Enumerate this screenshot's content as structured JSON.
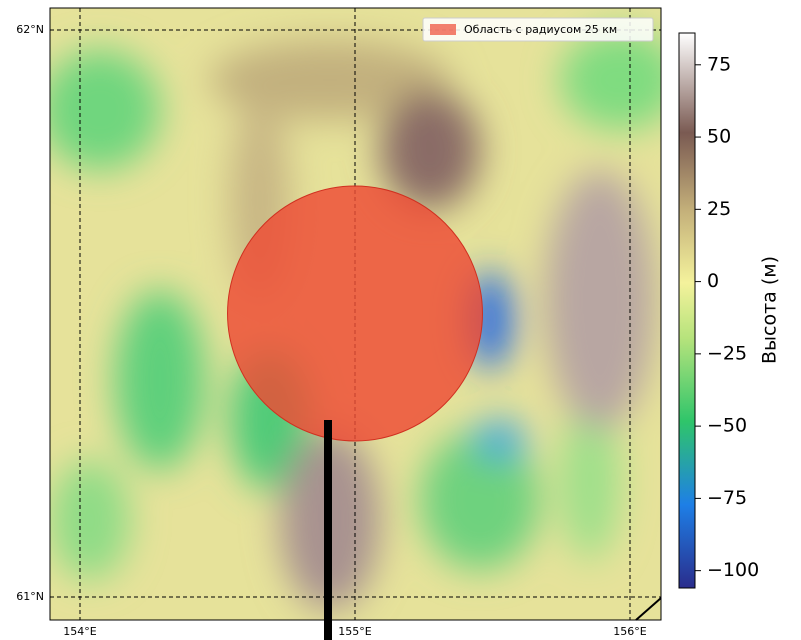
{
  "map": {
    "lon_ticks": [
      {
        "value": 154,
        "label": "154°E"
      },
      {
        "value": 155,
        "label": "155°E"
      },
      {
        "value": 156,
        "label": "156°E"
      }
    ],
    "lat_ticks": [
      {
        "value": 62,
        "label": "62°N"
      },
      {
        "value": 61,
        "label": "61°N"
      }
    ],
    "circle": {
      "lat": 61.5,
      "lon": 155,
      "radius_km": 25,
      "color": "#ee4a34"
    },
    "legend_label": "Область с радиусом 25 км",
    "colorbar": {
      "label": "Высота (м)",
      "lim": [
        -106,
        86
      ],
      "ticks": [
        {
          "value": 75,
          "label": "75"
        },
        {
          "value": 50,
          "label": "50"
        },
        {
          "value": 25,
          "label": "25"
        },
        {
          "value": 0,
          "label": "0"
        },
        {
          "value": -25,
          "label": "−25"
        },
        {
          "value": -50,
          "label": "−50"
        },
        {
          "value": -75,
          "label": "−75"
        },
        {
          "value": -100,
          "label": "−100"
        }
      ]
    }
  }
}
